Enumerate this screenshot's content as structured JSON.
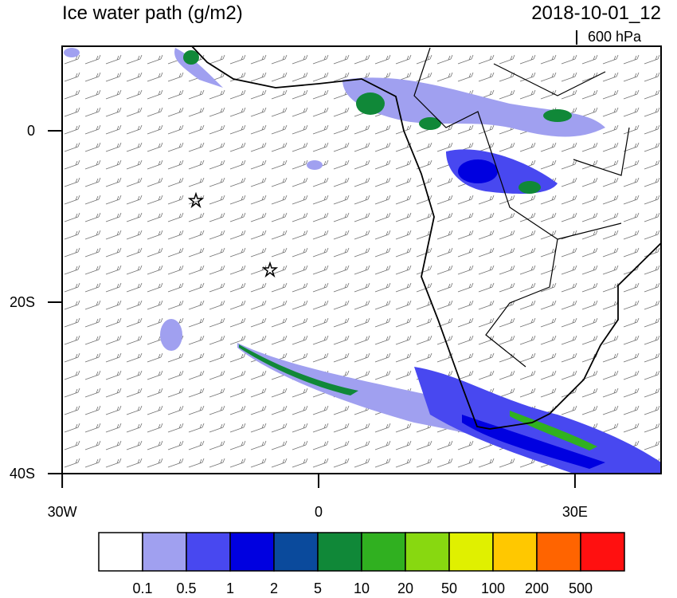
{
  "header": {
    "title": "Ice water path (g/m2)",
    "date": "2018-10-01_12",
    "level": "600 hPa"
  },
  "map": {
    "lat_ticks": [
      {
        "value": 0,
        "label": "0"
      },
      {
        "value": -20,
        "label": "20S"
      },
      {
        "value": -40,
        "label": "40S"
      }
    ],
    "lon_ticks": [
      {
        "value": -30,
        "label": "30W"
      },
      {
        "value": 0,
        "label": "0"
      },
      {
        "value": 30,
        "label": "30E"
      }
    ]
  },
  "colorbar": {
    "colors": [
      "#ffffff",
      "#a0a0f0",
      "#4848f0",
      "#0000e0",
      "#0a4a9c",
      "#108838",
      "#30b020",
      "#88d810",
      "#e0f000",
      "#ffc800",
      "#ff6400",
      "#ff1010"
    ],
    "labels": [
      "0.1",
      "0.5",
      "1",
      "2",
      "5",
      "10",
      "20",
      "50",
      "100",
      "200",
      "500"
    ]
  }
}
